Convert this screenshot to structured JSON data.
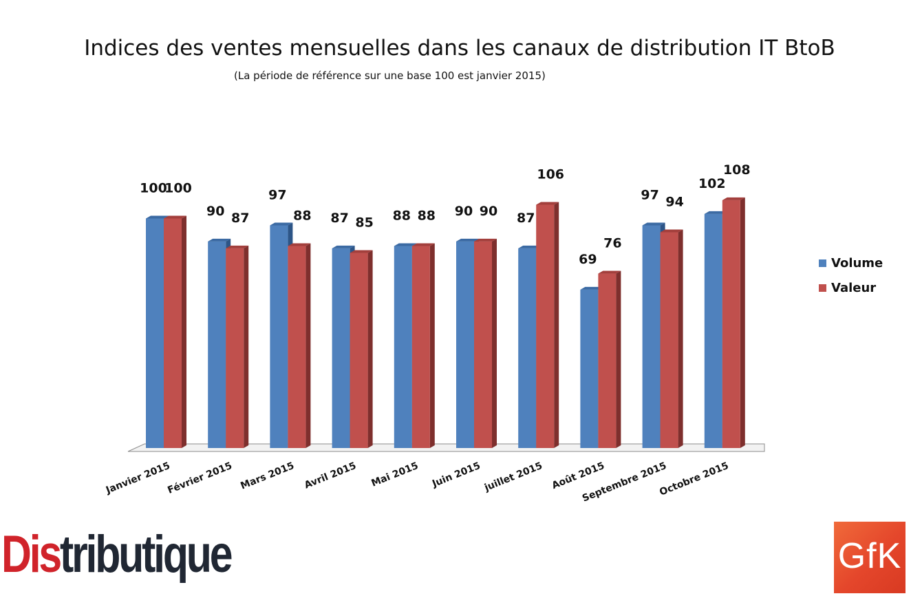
{
  "chart_data": {
    "type": "bar",
    "title": "Indices des ventes mensuelles dans les canaux de distribution IT BtoB",
    "subtitle": "(La période de référence sur une base 100 est janvier 2015)",
    "categories": [
      "Janvier 2015",
      "Février 2015",
      "Mars 2015",
      "Avril 2015",
      "Mai 2015",
      "Juin 2015",
      "juillet 2015",
      "Août 2015",
      "Septembre 2015",
      "Octobre 2015"
    ],
    "series": [
      {
        "name": "Volume",
        "values": [
          100,
          90,
          97,
          87,
          88,
          90,
          87,
          69,
          97,
          102
        ],
        "color": "#4f81bd"
      },
      {
        "name": "Valeur",
        "values": [
          100,
          87,
          88,
          85,
          88,
          90,
          106,
          76,
          94,
          108
        ],
        "color": "#c0504d"
      }
    ],
    "ylim": [
      0,
      110
    ],
    "grid": false,
    "legend": "right",
    "style": "3d-clustered-column"
  },
  "logos": {
    "distributique": {
      "first": "Dis",
      "rest": "tributique",
      "colors": [
        "#d0232a",
        "#202733"
      ]
    },
    "gfk": {
      "text": "GfK",
      "color": "#e4462b"
    }
  }
}
